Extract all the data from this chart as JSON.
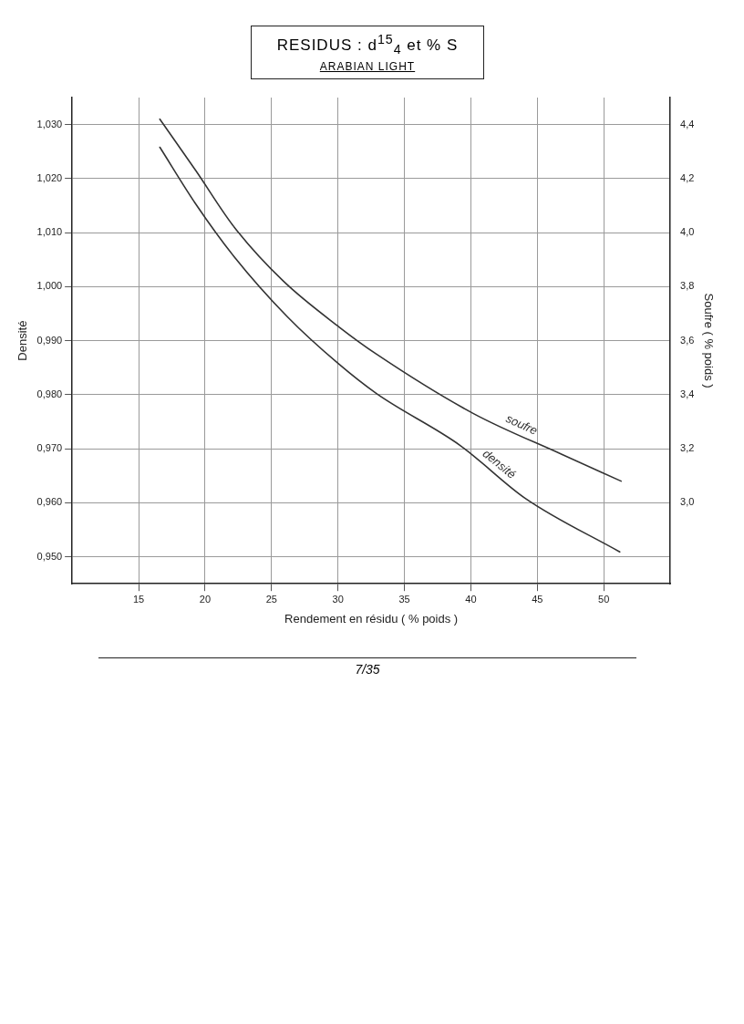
{
  "chart_data": {
    "type": "line",
    "title": "RESIDUS : d$^{15}$$_{4}$ et % S",
    "subtitle": "ARABIAN LIGHT",
    "xlabel": "Rendement en résidu ( % poids )",
    "ylabel": "Densité",
    "y2label": "Soufre ( % poids )",
    "xlim": [
      10,
      55
    ],
    "xticks": [
      15,
      20,
      25,
      30,
      35,
      40,
      45,
      50
    ],
    "ylim": [
      0.945,
      1.035
    ],
    "yticks": [
      {
        "value": 0.95,
        "label": "0,950"
      },
      {
        "value": 0.96,
        "label": "0,960"
      },
      {
        "value": 0.97,
        "label": "0,970"
      },
      {
        "value": 0.98,
        "label": "0,980"
      },
      {
        "value": 0.99,
        "label": "0,990"
      },
      {
        "value": 1.0,
        "label": "1,000"
      },
      {
        "value": 1.01,
        "label": "1,010"
      },
      {
        "value": 1.02,
        "label": "1,020"
      },
      {
        "value": 1.03,
        "label": "1,030"
      }
    ],
    "y2lim": [
      2.7,
      4.5
    ],
    "y2ticks": [
      {
        "value": 3.0,
        "label": "3,0"
      },
      {
        "value": 3.2,
        "label": "3,2"
      },
      {
        "value": 3.4,
        "label": "3,4"
      },
      {
        "value": 3.6,
        "label": "3,6"
      },
      {
        "value": 3.8,
        "label": "3,8"
      },
      {
        "value": 4.0,
        "label": "4,0"
      },
      {
        "value": 4.2,
        "label": "4,2"
      },
      {
        "value": 4.4,
        "label": "4,4"
      }
    ],
    "grid": true,
    "legend": false,
    "marker": "none",
    "line_style": "solid",
    "annotations": [
      "7/35"
    ],
    "series": [
      {
        "name": "soufre",
        "axis": "y2",
        "color": "#333333",
        "x": [
          16.6,
          19.3,
          22.2,
          25.9,
          30.1,
          32.9,
          40.2,
          46.8,
          51.3
        ],
        "values": [
          4.42,
          4.23,
          4.02,
          3.82,
          3.65,
          3.55,
          3.33,
          3.18,
          3.08
        ]
      },
      {
        "name": "densité",
        "color": "#333333",
        "x": [
          16.6,
          19.3,
          22.2,
          26.2,
          30.0,
          32.9,
          39.2,
          44.1,
          51.2
        ],
        "values": [
          1.0258,
          1.0153,
          1.0055,
          0.9944,
          0.9858,
          0.9802,
          0.9706,
          0.9608,
          0.9509
        ]
      }
    ]
  }
}
